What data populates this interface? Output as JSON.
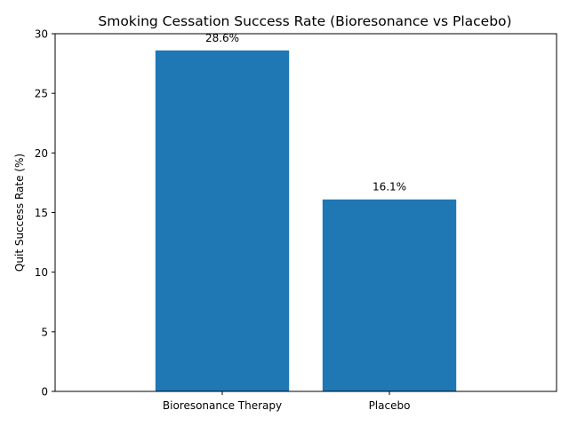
{
  "chart_data": {
    "type": "bar",
    "title": "Smoking Cessation Success Rate (Bioresonance vs Placebo)",
    "xlabel": "",
    "ylabel": "Quit Success Rate (%)",
    "categories": [
      "Bioresonance Therapy",
      "Placebo"
    ],
    "values": [
      28.6,
      16.1
    ],
    "value_labels": [
      "28.6%",
      "16.1%"
    ],
    "ylim": [
      0,
      30
    ],
    "yticks": [
      0,
      5,
      10,
      15,
      20,
      25,
      30
    ],
    "ytick_labels": [
      "0",
      "5",
      "10",
      "15",
      "20",
      "25",
      "30"
    ],
    "bar_color": "#1f77b4",
    "grid": false,
    "legend": "none"
  }
}
